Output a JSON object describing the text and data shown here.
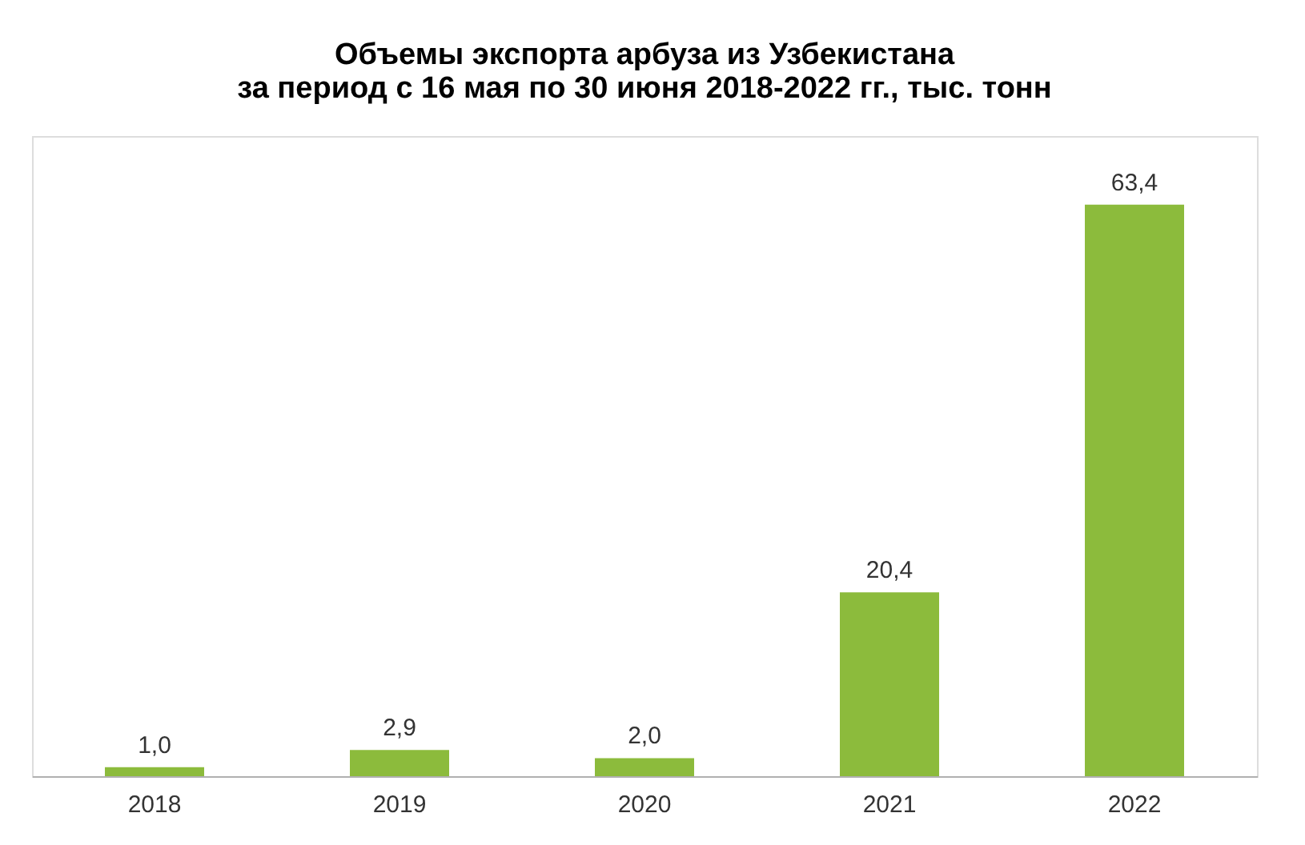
{
  "chart_data": {
    "type": "bar",
    "title": "Объемы экспорта арбуза из Узбекистана\nза период с 16 мая по 30 июня 2018-2022 гг., тыс. тонн",
    "categories": [
      "2018",
      "2019",
      "2020",
      "2021",
      "2022"
    ],
    "values": [
      1.0,
      2.9,
      2.0,
      20.4,
      63.4
    ],
    "value_labels": [
      "1,0",
      "2,9",
      "2,0",
      "20,4",
      "63,4"
    ],
    "color": "#8cbb3c",
    "grid": false
  }
}
